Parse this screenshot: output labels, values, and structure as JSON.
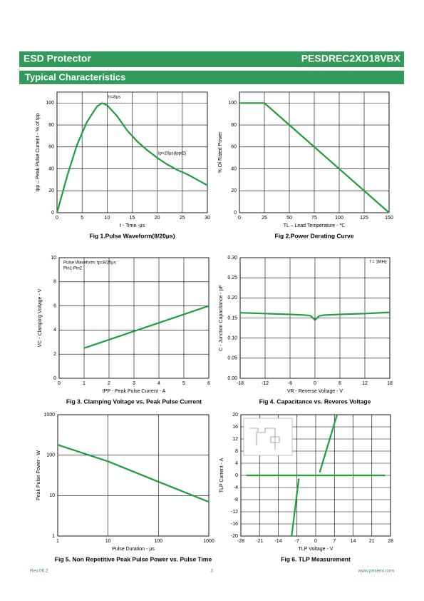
{
  "header": {
    "left": "ESD Protector",
    "right": "PESDREC2XD18VBX",
    "section": "Typical Characteristics"
  },
  "chart_data": [
    {
      "type": "line",
      "title": "Fig 1.Pulse Waveform(8/20μs)",
      "xlabel": "t - Time -μs",
      "ylabel": "Ipp – Peak Pulse Current - % of Ipp",
      "xlim": [
        0,
        30
      ],
      "xticks": [
        0,
        5,
        10,
        15,
        20,
        25,
        30
      ],
      "ylim": [
        0,
        110
      ],
      "yticks": [
        0,
        20,
        40,
        60,
        80,
        100
      ],
      "grid": true,
      "annotations": [
        "tr=8μs",
        "Ip=20μs(Ipp/2)"
      ],
      "series": [
        {
          "color": "#1f9e3a",
          "x": [
            0,
            2,
            4,
            6,
            8,
            9,
            10,
            12,
            14,
            16,
            18,
            20,
            22,
            24,
            26,
            28,
            30
          ],
          "values": [
            0,
            33,
            62,
            83,
            97,
            100,
            98,
            88,
            75,
            65,
            57,
            50,
            44,
            39,
            35,
            30,
            25
          ]
        }
      ]
    },
    {
      "type": "line",
      "title": "Fig 2.Power Derating Curve",
      "xlabel": "TL – Lead Temperature - ℃",
      "ylabel": "% Of Rated Power",
      "xlim": [
        0,
        150
      ],
      "xticks": [
        0,
        25,
        50,
        75,
        100,
        125,
        150
      ],
      "ylim": [
        0,
        110
      ],
      "yticks": [
        0,
        20,
        40,
        60,
        80,
        100
      ],
      "grid": true,
      "series": [
        {
          "color": "#1f9e3a",
          "x": [
            0,
            25,
            150
          ],
          "values": [
            100,
            100,
            0
          ]
        }
      ]
    },
    {
      "type": "line",
      "title": "Fig 3. Clamping Voltage vs. Peak Pulse Current",
      "xlabel": "IPP - Peak Pulse Current - A",
      "ylabel": "VC - Clamping Voltage - V",
      "xlim": [
        0,
        6
      ],
      "xticks": [
        0,
        1,
        2,
        3,
        4,
        5,
        6
      ],
      "ylim": [
        0,
        10
      ],
      "yticks": [
        0,
        2,
        4,
        6,
        8,
        10
      ],
      "grid": true,
      "annotations": [
        "Pulse Waveform: tp=8/20μs",
        "Pin1-Pin2"
      ],
      "series": [
        {
          "color": "#1f9e3a",
          "x": [
            1,
            6
          ],
          "values": [
            2.5,
            6
          ]
        }
      ]
    },
    {
      "type": "line",
      "title": "Fig 4. Capacitance vs. Reveres Voltage",
      "xlabel": "VR - Reverse Voltage - V",
      "ylabel": "C - Junction Capacitance - pF",
      "xlim": [
        -18,
        18
      ],
      "xticks": [
        -18,
        -12,
        -6,
        0,
        6,
        12,
        18
      ],
      "ylim": [
        0,
        0.3
      ],
      "yticks": [
        {
          "value": 0,
          "label": "0.00"
        },
        {
          "value": 0.05,
          "label": "0.05"
        },
        {
          "value": 0.1,
          "label": "0.10"
        },
        {
          "value": 0.15,
          "label": "0.15"
        },
        {
          "value": 0.2,
          "label": "0.20"
        },
        {
          "value": 0.25,
          "label": "0.25"
        },
        {
          "value": 0.3,
          "label": "0.30"
        }
      ],
      "grid": true,
      "annotations": [
        "f = 1MHz"
      ],
      "series": [
        {
          "color": "#1f9e3a",
          "x": [
            -18,
            -12,
            -6,
            -2,
            -1,
            0,
            1,
            2,
            6,
            12,
            18
          ],
          "values": [
            0.163,
            0.161,
            0.159,
            0.157,
            0.155,
            0.145,
            0.155,
            0.157,
            0.159,
            0.161,
            0.164
          ]
        }
      ]
    },
    {
      "type": "line",
      "title": "Fig 5. Non Repetitive Peak Pulse Power vs. Pulse Time",
      "xlabel": "Pulse Duration - μs",
      "ylabel": "Peak Pulse Power - W",
      "xscale": "log",
      "yscale": "log",
      "xlim": [
        1,
        1000
      ],
      "xticks": [
        1,
        10,
        100,
        1000
      ],
      "ylim": [
        1,
        1000
      ],
      "yticks": [
        1,
        10,
        100,
        1000
      ],
      "grid": true,
      "series": [
        {
          "color": "#1f9e3a",
          "x": [
            1,
            10,
            100,
            1000
          ],
          "values": [
            180,
            70,
            22,
            7
          ]
        }
      ]
    },
    {
      "type": "line",
      "title": "Fig 6. TLP Measurement",
      "xlabel": "TLP Voltage - V",
      "ylabel": "TLP Current - A",
      "xlim": [
        -28,
        28
      ],
      "xticks": [
        -28,
        -21,
        -14,
        -7,
        0,
        7,
        14,
        21,
        28
      ],
      "ylim": [
        -20,
        20
      ],
      "yticks": [
        -20,
        -16,
        -12,
        -8,
        -4,
        0,
        4,
        8,
        12,
        16,
        20
      ],
      "grid": true,
      "series": [
        {
          "color": "#1f9e3a",
          "x": [
            -9,
            -6.3,
            null,
            -26,
            26,
            null,
            1.5,
            8
          ],
          "values": [
            -20,
            -1,
            null,
            0,
            0,
            null,
            1,
            20
          ]
        }
      ]
    }
  ],
  "footer": {
    "left": "Rev.06.2",
    "center": "3",
    "right": "www.prisemi.com"
  }
}
